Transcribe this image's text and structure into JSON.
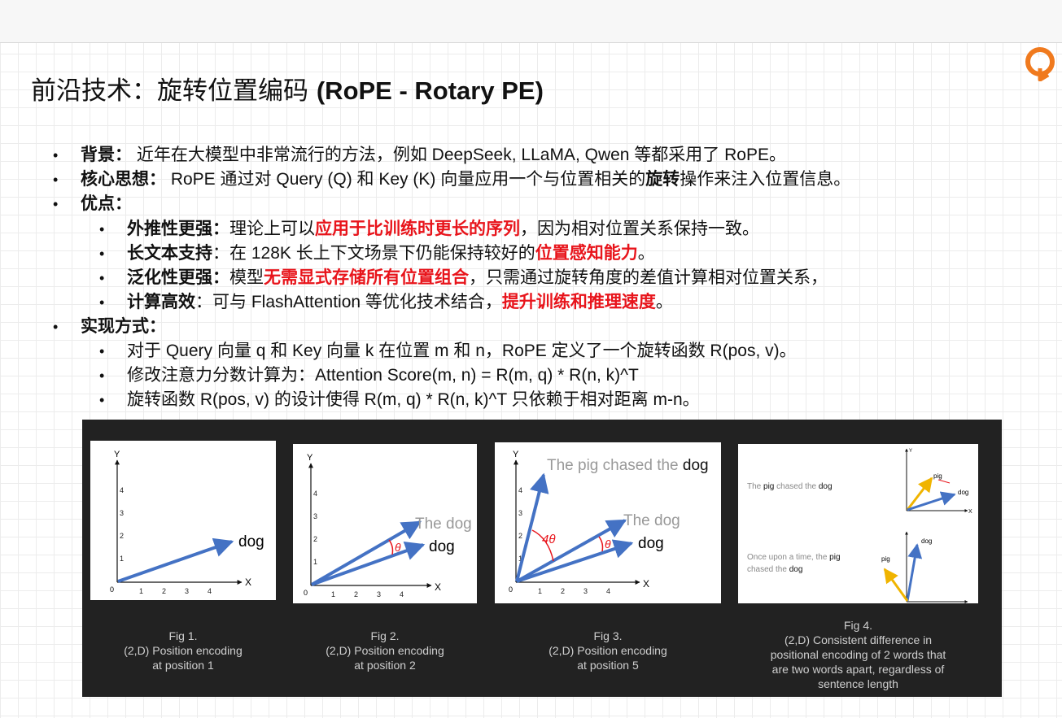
{
  "title": {
    "zh": "前沿技术：旋转位置编码 ",
    "en": "(RoPE - Rotary PE)"
  },
  "bullets": {
    "b1": {
      "label": "背景",
      "sep": "：",
      "text": " 近年在大模型中非常流行的方法，例如 DeepSeek, LLaMA, Qwen 等都采用了 RoPE。"
    },
    "b2": {
      "label": "核心思想",
      "sep": "：",
      "t1": " RoPE 通过对 Query (Q) 和 Key (K) 向量应用一个与位置相关的",
      "bold": "旋转",
      "t2": "操作来注入位置信息。"
    },
    "b3": {
      "label": "优点",
      "sep": "："
    },
    "s1": {
      "label": "外推性更强",
      "sep": "：",
      "t1": "理论上可以",
      "red": "应用于比训练时更长的序列",
      "t2": "，因为相对位置关系保持一致。"
    },
    "s2": {
      "label": "长文本支持",
      "sep": "：",
      "t1": "在 128K 长上下文场景下仍能保持较好的",
      "red": "位置感知能力",
      "t2": "。"
    },
    "s3": {
      "label": "泛化性更强",
      "sep": "：",
      "t1": "模型",
      "red": "无需显式存储所有位置组合",
      "t2": "，只需通过旋转角度的差值计算相对位置关系，"
    },
    "s4": {
      "label": "计算高效",
      "sep": "：",
      "t1": "可与 FlashAttention 等优化技术结合，",
      "red": "提升训练和推理速度",
      "t2": "。"
    },
    "b4": {
      "label": "实现方式",
      "sep": "："
    },
    "s5": {
      "text": "对于 Query 向量 q 和 Key 向量 k 在位置 m 和 n，RoPE 定义了一个旋转函数 R(pos, v)。"
    },
    "s6": {
      "text": "修改注意力分数计算为：Attention Score(m, n) = R(m, q) * R(n, k)^T"
    },
    "s7": {
      "text": "旋转函数 R(pos, v) 的设计使得 R(m, q) * R(n, k)^T 只依赖于相对距离 m-n。"
    }
  },
  "figures": {
    "axis_x": "X",
    "axis_y": "Y",
    "origin": "0",
    "ticks": [
      "1",
      "2",
      "3",
      "4"
    ],
    "theta": "θ",
    "four_theta": "4θ",
    "fig1": {
      "vec": "dog",
      "cap1": "Fig 1.",
      "cap2": "(2,D) Position encoding",
      "cap3": "at position 1"
    },
    "fig2": {
      "vec1": "The dog",
      "vec2": "dog",
      "cap1": "Fig 2.",
      "cap2": "(2,D) Position encoding",
      "cap3": "at position 2"
    },
    "fig3": {
      "vec0": "The pig chased the ",
      "vec0b": "dog",
      "vec1": "The dog",
      "vec2": "dog",
      "cap1": "Fig 3.",
      "cap2": "(2,D) Position encoding",
      "cap3": "at position 5"
    },
    "fig4": {
      "s1a": "The ",
      "s1b": "pig",
      "s1c": " chased the ",
      "s1d": "dog",
      "s2a": "Once upon a time, the ",
      "s2b": "pig",
      "s2c": "chased the ",
      "s2d": "dog",
      "pig": "pig",
      "dog": "dog",
      "cap1": "Fig 4.",
      "cap2": "(2,D) Consistent difference in",
      "cap3": "positional encoding of 2 words that",
      "cap4": "are two words apart, regardless of",
      "cap5": "sentence length"
    }
  },
  "colors": {
    "accent_red": "#e8141b",
    "vector_blue": "#4472c4",
    "vector_gold": "#f0b400",
    "logo_orange": "#f07a1e"
  }
}
